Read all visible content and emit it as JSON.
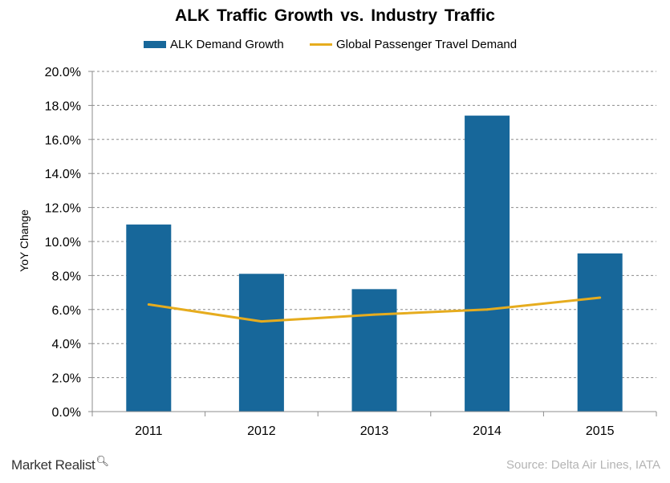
{
  "chart_data": {
    "type": "bar",
    "title": "ALK  Traffic  Growth vs. Industry  Traffic",
    "xlabel": "",
    "ylabel": "YoY Change",
    "categories": [
      "2011",
      "2012",
      "2013",
      "2014",
      "2015"
    ],
    "series": [
      {
        "name": "ALK Demand Growth",
        "type": "bar",
        "color": "#17679A",
        "values": [
          11.0,
          8.1,
          7.2,
          17.4,
          9.3
        ]
      },
      {
        "name": "Global Passenger Travel Demand",
        "type": "line",
        "color": "#E6AC1E",
        "values": [
          6.3,
          5.3,
          5.7,
          6.0,
          6.7
        ]
      }
    ],
    "ylim": [
      0,
      20
    ],
    "yticks": [
      0,
      2,
      4,
      6,
      8,
      10,
      12,
      14,
      16,
      18,
      20
    ],
    "ytick_labels": [
      "0.0%",
      "2.0%",
      "4.0%",
      "6.0%",
      "8.0%",
      "10.0%",
      "12.0%",
      "14.0%",
      "16.0%",
      "18.0%",
      "20.0%"
    ],
    "grid": "dashed horizontal",
    "legend_position": "top-center"
  },
  "footer": {
    "brand": "Market Realist",
    "brand_icon": "magnifier-icon",
    "source": "Source: Delta Air Lines, IATA"
  }
}
